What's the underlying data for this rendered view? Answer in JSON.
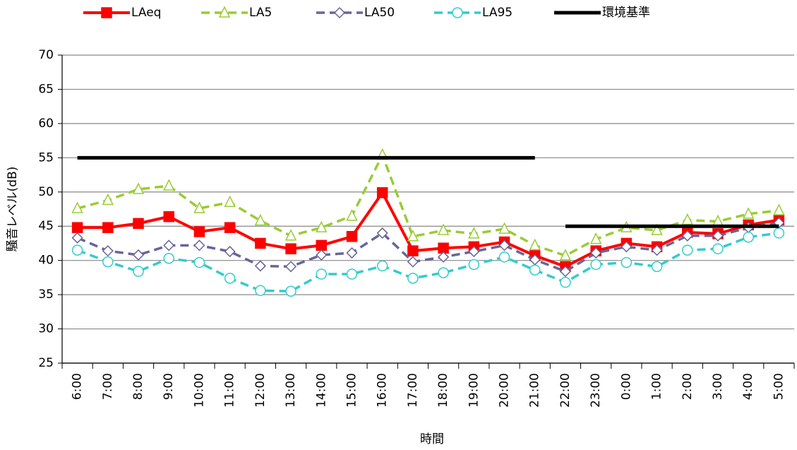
{
  "chart_data": {
    "type": "line",
    "x_label": "時間",
    "y_label": "騒音レベル(dB)",
    "categories": [
      "6:00",
      "7:00",
      "8:00",
      "9:00",
      "10:00",
      "11:00",
      "12:00",
      "13:00",
      "14:00",
      "15:00",
      "16:00",
      "17:00",
      "18:00",
      "19:00",
      "20:00",
      "21:00",
      "22:00",
      "23:00",
      "0:00",
      "1:00",
      "2:00",
      "3:00",
      "4:00",
      "5:00"
    ],
    "series": [
      {
        "name": "LAeq",
        "color": "#ff0000",
        "marker": "square",
        "dash": "solid",
        "values": [
          44.8,
          44.8,
          45.4,
          46.4,
          44.2,
          44.8,
          42.5,
          41.7,
          42.2,
          43.5,
          49.9,
          41.4,
          41.8,
          42.0,
          42.7,
          40.7,
          39.1,
          41.4,
          42.5,
          42.0,
          44.1,
          43.9,
          45.2,
          45.9
        ]
      },
      {
        "name": "LA5",
        "color": "#99cc33",
        "marker": "triangle",
        "dash": "dashed",
        "values": [
          47.6,
          48.8,
          50.4,
          50.9,
          47.6,
          48.5,
          45.8,
          43.6,
          44.8,
          46.5,
          55.4,
          43.5,
          44.4,
          43.9,
          44.6,
          42.2,
          40.7,
          43.1,
          44.8,
          44.4,
          45.9,
          45.7,
          46.8,
          47.3
        ]
      },
      {
        "name": "LA50",
        "color": "#666699",
        "marker": "diamond",
        "dash": "dashed",
        "values": [
          43.3,
          41.4,
          40.8,
          42.2,
          42.2,
          41.3,
          39.2,
          39.1,
          40.8,
          41.1,
          44.0,
          39.8,
          40.5,
          41.3,
          42.2,
          40.1,
          38.4,
          41.1,
          42.0,
          41.5,
          43.6,
          43.6,
          44.8,
          45.5
        ]
      },
      {
        "name": "LA95",
        "color": "#33cccc",
        "marker": "circle",
        "dash": "dashed",
        "values": [
          41.5,
          39.8,
          38.4,
          40.3,
          39.7,
          37.4,
          35.6,
          35.5,
          38.0,
          38.0,
          39.2,
          37.4,
          38.2,
          39.4,
          40.5,
          38.6,
          36.8,
          39.4,
          39.7,
          39.1,
          41.5,
          41.7,
          43.4,
          44.0
        ]
      },
      {
        "name": "環境基準",
        "color": "#000000",
        "marker": "none",
        "dash": "solid",
        "values": [
          55,
          55,
          55,
          55,
          55,
          55,
          55,
          55,
          55,
          55,
          55,
          55,
          55,
          55,
          55,
          55,
          45,
          45,
          45,
          45,
          45,
          45,
          45,
          45
        ]
      }
    ],
    "ylim": [
      25,
      70
    ],
    "yticks": [
      25,
      30,
      35,
      40,
      45,
      50,
      55,
      60,
      65,
      70
    ],
    "grid": true,
    "legend": "top"
  }
}
